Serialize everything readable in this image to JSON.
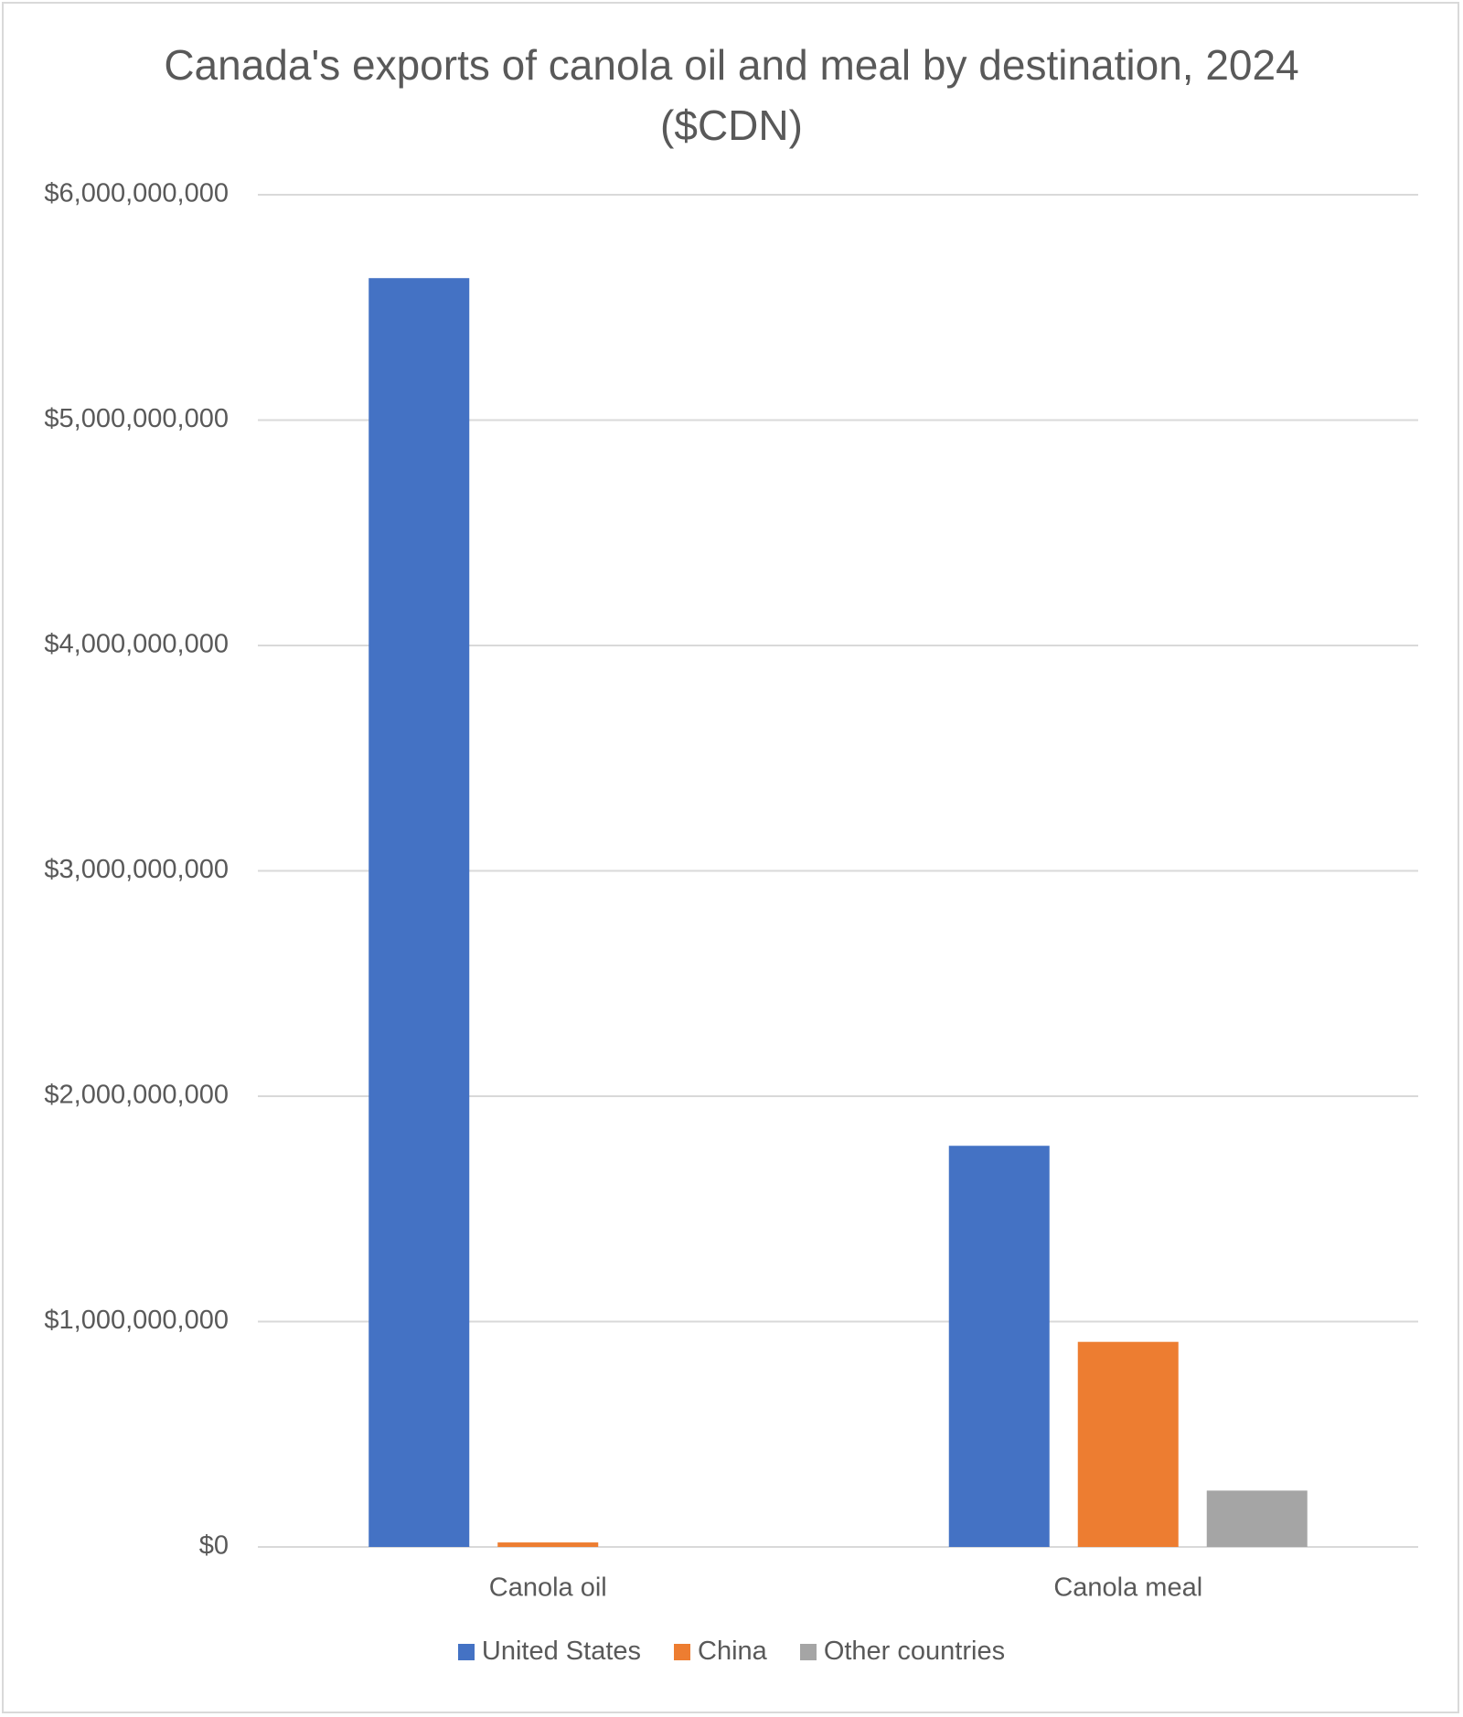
{
  "chart_data": {
    "type": "bar",
    "title": "Canada's exports of canola oil and meal by destination, 2024 ($CDN)",
    "categories": [
      "Canola oil",
      "Canola meal"
    ],
    "series": [
      {
        "name": "United States",
        "color": "#4472c4",
        "values": [
          5630000000,
          1780000000
        ]
      },
      {
        "name": "China",
        "color": "#ed7d31",
        "values": [
          20000000,
          910000000
        ]
      },
      {
        "name": "Other countries",
        "color": "#a5a5a5",
        "values": [
          0,
          250000000
        ]
      }
    ],
    "ylim": [
      0,
      6000000000
    ],
    "yticks": [
      {
        "value": 0,
        "label": "$0"
      },
      {
        "value": 1000000000,
        "label": "$1,000,000,000"
      },
      {
        "value": 2000000000,
        "label": "$2,000,000,000"
      },
      {
        "value": 3000000000,
        "label": "$3,000,000,000"
      },
      {
        "value": 4000000000,
        "label": "$4,000,000,000"
      },
      {
        "value": 5000000000,
        "label": "$5,000,000,000"
      },
      {
        "value": 6000000000,
        "label": "$6,000,000,000"
      }
    ],
    "grid": true,
    "legend": "bottom"
  }
}
